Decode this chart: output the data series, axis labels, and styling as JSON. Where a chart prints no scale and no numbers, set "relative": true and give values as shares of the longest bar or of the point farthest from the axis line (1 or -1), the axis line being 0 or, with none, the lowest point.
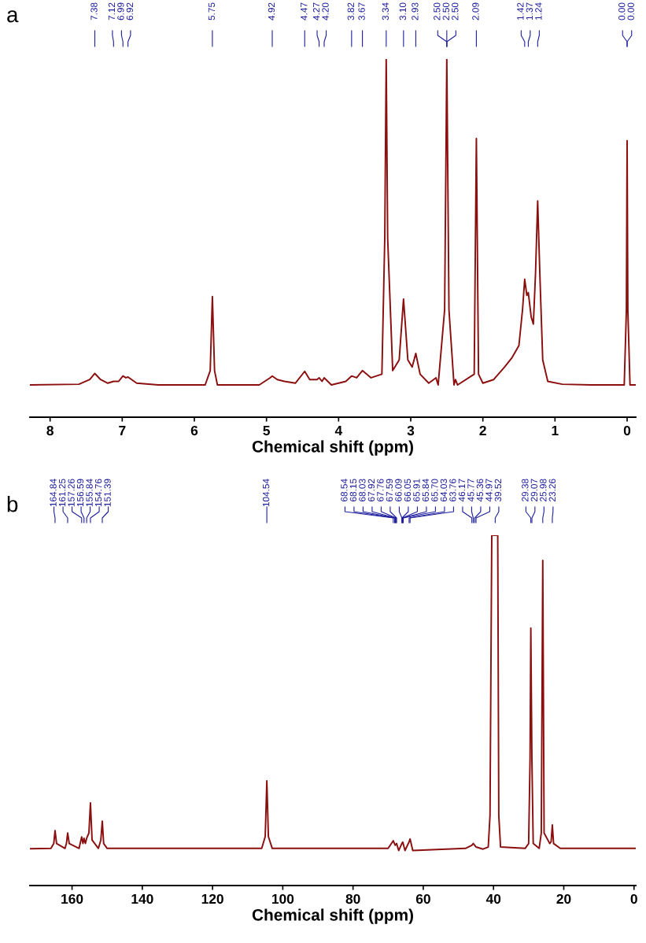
{
  "chart_data": [
    {
      "type": "line",
      "title": "a",
      "xlabel": "Chemical shift (ppm)",
      "relative": true,
      "tick_labels": "x",
      "grid": false,
      "legend": false,
      "xlim": [
        8.28,
        -0.12
      ],
      "xticks": [
        8,
        7,
        6,
        5,
        4,
        3,
        2,
        1,
        0
      ],
      "series": [
        {
          "color": "#8b0f0f",
          "x": [
            8.28,
            7.6,
            7.45,
            7.38,
            7.3,
            7.2,
            7.12,
            7.05,
            6.99,
            6.95,
            6.92,
            6.8,
            6.5,
            5.85,
            5.78,
            5.75,
            5.72,
            5.68,
            5.1,
            4.95,
            4.92,
            4.85,
            4.75,
            4.6,
            4.47,
            4.4,
            4.3,
            4.27,
            4.23,
            4.2,
            4.1,
            3.9,
            3.82,
            3.75,
            3.67,
            3.55,
            3.4,
            3.36,
            3.34,
            3.32,
            3.25,
            3.16,
            3.1,
            3.04,
            2.98,
            2.93,
            2.87,
            2.75,
            2.65,
            2.62,
            2.53,
            2.5,
            2.47,
            2.4,
            2.38,
            2.35,
            2.12,
            2.09,
            2.06,
            2.0,
            1.85,
            1.7,
            1.6,
            1.5,
            1.45,
            1.42,
            1.39,
            1.37,
            1.33,
            1.3,
            1.27,
            1.24,
            1.21,
            1.17,
            1.1,
            0.9,
            0.5,
            0.04,
            0.01,
            0.0,
            -0.01,
            -0.04,
            -0.12
          ],
          "values": [
            0.09,
            0.092,
            0.105,
            0.122,
            0.105,
            0.095,
            0.1,
            0.1,
            0.115,
            0.11,
            0.112,
            0.095,
            0.09,
            0.09,
            0.13,
            0.337,
            0.13,
            0.09,
            0.09,
            0.11,
            0.115,
            0.105,
            0.1,
            0.095,
            0.128,
            0.105,
            0.105,
            0.11,
            0.1,
            0.11,
            0.09,
            0.1,
            0.115,
            0.11,
            0.13,
            0.11,
            0.12,
            0.5,
            1.0,
            0.5,
            0.13,
            0.16,
            0.33,
            0.16,
            0.14,
            0.178,
            0.12,
            0.095,
            0.11,
            0.09,
            0.3,
            1.0,
            0.3,
            0.09,
            0.105,
            0.09,
            0.12,
            0.778,
            0.12,
            0.095,
            0.105,
            0.14,
            0.165,
            0.2,
            0.3,
            0.385,
            0.34,
            0.348,
            0.28,
            0.26,
            0.4,
            0.604,
            0.4,
            0.16,
            0.1,
            0.092,
            0.09,
            0.09,
            0.3,
            0.772,
            0.3,
            0.09,
            0.09
          ]
        }
      ],
      "annotations": [
        {
          "text": "7.38",
          "x": 7.38
        },
        {
          "text": "7.12",
          "x": 7.12
        },
        {
          "text": "6.99",
          "x": 6.99
        },
        {
          "text": "6.92",
          "x": 6.92
        },
        {
          "text": "5.75",
          "x": 5.75
        },
        {
          "text": "4.92",
          "x": 4.92
        },
        {
          "text": "4.47",
          "x": 4.47
        },
        {
          "text": "4.27",
          "x": 4.27
        },
        {
          "text": "4.20",
          "x": 4.2
        },
        {
          "text": "3.82",
          "x": 3.82
        },
        {
          "text": "3.67",
          "x": 3.67
        },
        {
          "text": "3.34",
          "x": 3.34
        },
        {
          "text": "3.10",
          "x": 3.1
        },
        {
          "text": "2.93",
          "x": 2.93
        },
        {
          "text": "2.50",
          "x": 2.5
        },
        {
          "text": "2.50",
          "x": 2.5
        },
        {
          "text": "2.50",
          "x": 2.5
        },
        {
          "text": "2.09",
          "x": 2.09
        },
        {
          "text": "1.42",
          "x": 1.42
        },
        {
          "text": "1.37",
          "x": 1.37
        },
        {
          "text": "1.24",
          "x": 1.24
        },
        {
          "text": "0.00",
          "x": 0.0
        },
        {
          "text": "0.00",
          "x": 0.0
        }
      ]
    },
    {
      "type": "line",
      "title": "b",
      "xlabel": "Chemical shift (ppm)",
      "relative": true,
      "tick_labels": "x",
      "grid": false,
      "legend": false,
      "xlim": [
        172,
        -0.5
      ],
      "xticks": [
        160,
        140,
        120,
        100,
        80,
        60,
        40,
        20,
        0
      ],
      "series": [
        {
          "color": "#8b0f0f",
          "x": [
            172,
            166,
            165.2,
            164.84,
            164.4,
            162,
            161.6,
            161.25,
            160.8,
            158,
            157.26,
            156.9,
            156.59,
            156.2,
            155.84,
            155.2,
            154.76,
            154.3,
            152.5,
            151.8,
            151.39,
            151.0,
            150,
            106,
            105,
            104.54,
            104.1,
            103,
            70,
            68.54,
            68.0,
            67.6,
            67,
            66.09,
            65.84,
            65.2,
            64.03,
            63.76,
            63,
            48,
            46.17,
            45.77,
            45.36,
            44.97,
            43,
            41.5,
            41,
            40.5,
            39.52,
            38.8,
            38.5,
            38,
            31,
            30,
            29.6,
            29.38,
            29.07,
            28.7,
            27,
            26.4,
            25.98,
            25.6,
            24,
            23.6,
            23.26,
            22.9,
            21,
            0,
            -0.5
          ],
          "values": [
            0.105,
            0.106,
            0.12,
            0.157,
            0.12,
            0.106,
            0.12,
            0.15,
            0.12,
            0.106,
            0.139,
            0.12,
            0.135,
            0.12,
            0.135,
            0.15,
            0.236,
            0.13,
            0.106,
            0.13,
            0.184,
            0.12,
            0.106,
            0.106,
            0.14,
            0.299,
            0.14,
            0.106,
            0.106,
            0.128,
            0.115,
            0.12,
            0.1,
            0.12,
            0.124,
            0.1,
            0.125,
            0.133,
            0.1,
            0.106,
            0.115,
            0.12,
            0.115,
            0.11,
            0.104,
            0.11,
            0.2,
            1.0,
            1.0,
            1.0,
            0.2,
            0.11,
            0.106,
            0.12,
            0.36,
            0.735,
            0.36,
            0.12,
            0.106,
            0.15,
            0.928,
            0.15,
            0.12,
            0.125,
            0.173,
            0.12,
            0.106,
            0.106,
            0.106
          ]
        }
      ],
      "annotations": [
        {
          "text": "164.84",
          "x": 164.84
        },
        {
          "text": "161.25",
          "x": 161.25
        },
        {
          "text": "157.26",
          "x": 157.26
        },
        {
          "text": "156.59",
          "x": 156.59
        },
        {
          "text": "155.84",
          "x": 155.84
        },
        {
          "text": "154.76",
          "x": 154.76
        },
        {
          "text": "151.39",
          "x": 151.39
        },
        {
          "text": "104.54",
          "x": 104.54
        },
        {
          "text": "68.54",
          "x": 68.54
        },
        {
          "text": "68.15",
          "x": 68.15
        },
        {
          "text": "68.03",
          "x": 68.03
        },
        {
          "text": "67.92",
          "x": 67.92
        },
        {
          "text": "67.76",
          "x": 67.76
        },
        {
          "text": "67.59",
          "x": 67.59
        },
        {
          "text": "66.09",
          "x": 66.09
        },
        {
          "text": "66.05",
          "x": 66.05
        },
        {
          "text": "65.91",
          "x": 65.91
        },
        {
          "text": "65.84",
          "x": 65.84
        },
        {
          "text": "65.70",
          "x": 65.7
        },
        {
          "text": "64.03",
          "x": 64.03
        },
        {
          "text": "63.76",
          "x": 63.76
        },
        {
          "text": "46.17",
          "x": 46.17
        },
        {
          "text": "45.77",
          "x": 45.77
        },
        {
          "text": "45.36",
          "x": 45.36
        },
        {
          "text": "44.97",
          "x": 44.97
        },
        {
          "text": "39.52",
          "x": 39.52
        },
        {
          "text": "29.38",
          "x": 29.38
        },
        {
          "text": "29.07",
          "x": 29.07
        },
        {
          "text": "25.98",
          "x": 25.98
        },
        {
          "text": "23.26",
          "x": 23.26
        }
      ]
    }
  ]
}
